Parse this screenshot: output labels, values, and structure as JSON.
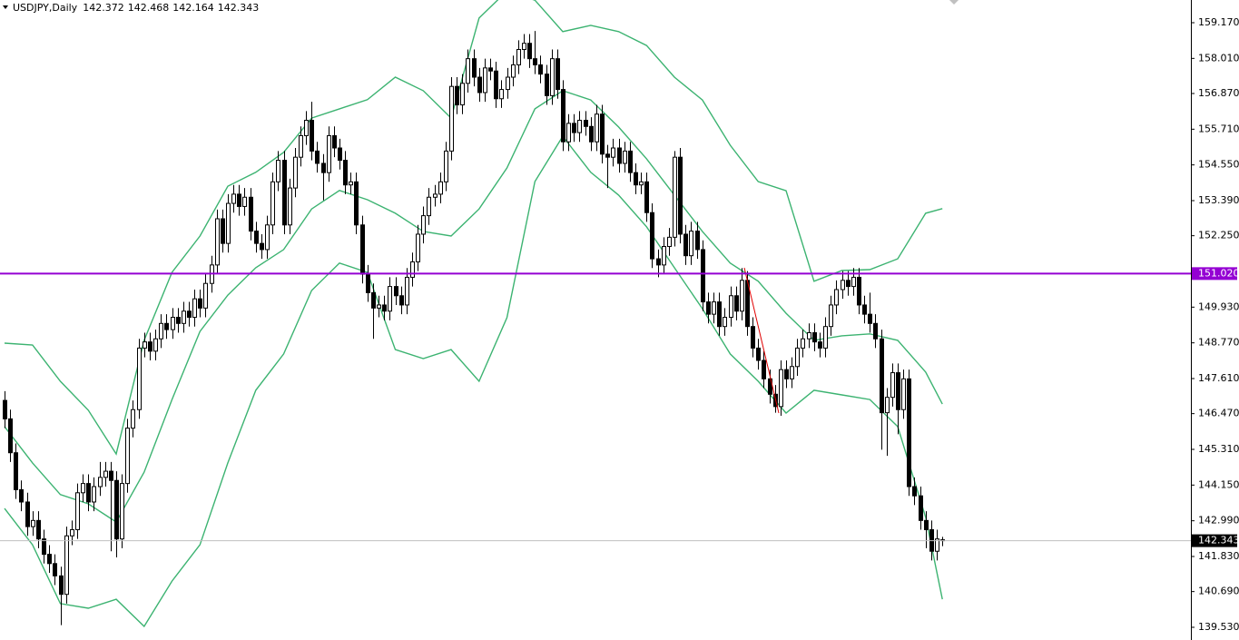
{
  "chart_data": {
    "type": "candlestick",
    "title": "USDJPY,Daily",
    "open": [
      146.9,
      146.3,
      145.2,
      144.0,
      143.6,
      142.8,
      143.0,
      142.4,
      141.9,
      141.6,
      141.2,
      140.6,
      142.5,
      142.7,
      143.9,
      144.2,
      143.6,
      144.1,
      144.4,
      144.6,
      144.3,
      142.4,
      144.2,
      146.0,
      146.6,
      148.6,
      148.8,
      148.5,
      148.9,
      149.4,
      149.2,
      149.6,
      149.4,
      149.8,
      149.6,
      150.2,
      149.9,
      150.7,
      151.3,
      152.8,
      152.0,
      153.3,
      153.6,
      153.2,
      153.5,
      152.4,
      152.0,
      151.8,
      152.6,
      154.0,
      154.7,
      152.6,
      153.8,
      154.8,
      155.5,
      156.0,
      155.0,
      154.6,
      154.3,
      155.5,
      155.1,
      154.7,
      153.9,
      154.0,
      152.6,
      151.0,
      150.4,
      149.9,
      150.0,
      149.8,
      150.6,
      150.3,
      150.0,
      150.9,
      151.4,
      152.3,
      152.9,
      153.5,
      153.6,
      154.0,
      155.0,
      157.1,
      156.5,
      157.2,
      158.0,
      157.4,
      156.9,
      157.7,
      157.6,
      156.7,
      157.0,
      157.4,
      157.8,
      158.3,
      158.5,
      158.0,
      157.8,
      157.5,
      156.8,
      158.0,
      157.0,
      155.3,
      155.9,
      155.6,
      156.0,
      155.8,
      155.3,
      156.2,
      154.9,
      154.8,
      155.1,
      154.6,
      155.0,
      154.3,
      153.9,
      154.0,
      153.0,
      151.5,
      151.3,
      151.9,
      152.2,
      154.8,
      152.3,
      151.6,
      152.4,
      151.8,
      150.1,
      149.7,
      150.1,
      149.3,
      149.6,
      150.3,
      149.8,
      150.8,
      149.3,
      148.6,
      148.2,
      147.6,
      147.1,
      146.7,
      147.9,
      147.6,
      148.0,
      148.6,
      148.9,
      149.1,
      148.8,
      148.6,
      149.3,
      150.0,
      150.5,
      150.8,
      150.6,
      150.9,
      150.0,
      149.7,
      149.4,
      148.9,
      146.5,
      147.0,
      147.8,
      146.6,
      147.6,
      144.1,
      143.8,
      143.0,
      142.7,
      142.0,
      142.372
    ],
    "high": [
      147.2,
      146.6,
      145.5,
      144.3,
      143.9,
      143.3,
      143.3,
      142.7,
      142.2,
      141.9,
      141.5,
      142.8,
      143.0,
      144.2,
      144.5,
      144.5,
      144.4,
      144.9,
      144.9,
      144.9,
      144.6,
      144.5,
      146.3,
      146.9,
      148.9,
      149.1,
      149.1,
      149.2,
      149.7,
      149.7,
      149.9,
      149.9,
      150.1,
      150.1,
      150.5,
      150.5,
      151.0,
      151.6,
      153.1,
      153.1,
      153.6,
      153.9,
      153.9,
      153.8,
      153.8,
      152.7,
      152.3,
      152.9,
      154.3,
      155.0,
      155.0,
      154.1,
      155.1,
      155.8,
      156.3,
      156.6,
      155.3,
      154.9,
      155.8,
      155.8,
      155.4,
      155.0,
      154.3,
      154.3,
      152.9,
      151.3,
      150.7,
      150.3,
      150.3,
      150.9,
      150.9,
      150.6,
      151.2,
      151.7,
      152.6,
      153.2,
      153.8,
      153.9,
      154.3,
      155.3,
      157.4,
      157.4,
      157.5,
      158.3,
      158.3,
      157.7,
      158.0,
      158.0,
      157.9,
      157.3,
      157.7,
      158.1,
      158.6,
      158.8,
      158.8,
      158.9,
      158.1,
      157.8,
      158.3,
      158.3,
      157.3,
      156.2,
      156.2,
      156.3,
      156.3,
      156.1,
      156.5,
      156.5,
      155.2,
      155.4,
      155.4,
      155.3,
      155.3,
      154.6,
      154.3,
      154.3,
      153.3,
      151.8,
      152.2,
      152.5,
      155.0,
      155.1,
      152.6,
      152.7,
      152.7,
      152.1,
      150.4,
      150.4,
      150.4,
      149.9,
      150.6,
      150.6,
      151.2,
      151.1,
      149.6,
      148.9,
      148.5,
      147.9,
      147.4,
      148.2,
      148.2,
      148.3,
      148.9,
      149.2,
      149.4,
      149.4,
      149.1,
      149.6,
      150.3,
      150.8,
      151.1,
      151.1,
      151.2,
      151.2,
      150.3,
      150.4,
      149.7,
      149.2,
      147.3,
      148.1,
      148.1,
      147.9,
      147.9,
      144.4,
      144.1,
      143.3,
      143.0,
      142.7,
      142.468
    ],
    "low": [
      146.0,
      144.9,
      143.7,
      143.3,
      142.5,
      142.5,
      142.1,
      141.6,
      141.3,
      140.9,
      139.6,
      140.3,
      142.2,
      142.4,
      143.6,
      143.3,
      143.3,
      143.8,
      144.1,
      142.0,
      141.8,
      142.1,
      143.9,
      145.7,
      146.3,
      148.3,
      148.2,
      148.2,
      148.6,
      148.9,
      148.9,
      149.1,
      149.1,
      149.3,
      149.3,
      149.6,
      149.6,
      150.4,
      151.0,
      151.7,
      151.7,
      153.0,
      152.9,
      152.9,
      152.1,
      151.7,
      151.5,
      151.5,
      152.3,
      153.7,
      152.3,
      152.3,
      153.5,
      154.5,
      155.2,
      154.7,
      154.3,
      153.4,
      154.0,
      154.8,
      154.4,
      153.6,
      153.6,
      152.3,
      150.7,
      150.1,
      148.9,
      149.6,
      149.5,
      149.5,
      150.0,
      149.7,
      149.7,
      150.6,
      151.1,
      152.0,
      152.6,
      153.2,
      153.3,
      153.7,
      154.7,
      156.2,
      156.2,
      156.9,
      157.1,
      156.6,
      156.6,
      157.3,
      156.4,
      156.4,
      156.7,
      157.1,
      157.5,
      158.0,
      157.7,
      157.5,
      157.2,
      156.5,
      156.5,
      156.7,
      155.0,
      155.0,
      155.3,
      155.3,
      155.5,
      155.0,
      155.0,
      154.6,
      153.8,
      154.5,
      154.3,
      154.3,
      154.0,
      153.6,
      153.6,
      152.7,
      151.2,
      150.9,
      151.0,
      151.6,
      151.9,
      152.0,
      151.3,
      151.3,
      151.5,
      149.8,
      149.4,
      149.4,
      149.0,
      149.0,
      149.3,
      149.5,
      149.5,
      149.0,
      148.3,
      147.9,
      147.3,
      146.8,
      146.5,
      146.4,
      147.3,
      147.3,
      147.7,
      148.3,
      148.6,
      148.5,
      148.3,
      148.3,
      149.0,
      149.7,
      150.2,
      150.3,
      150.3,
      149.7,
      149.4,
      149.1,
      148.6,
      145.3,
      145.1,
      146.7,
      145.8,
      146.3,
      143.8,
      143.5,
      142.7,
      142.1,
      141.7,
      141.7,
      142.164
    ],
    "close": [
      146.3,
      145.2,
      144.0,
      143.6,
      142.8,
      143.0,
      142.4,
      141.9,
      141.6,
      141.2,
      140.6,
      142.5,
      142.7,
      143.9,
      144.2,
      143.6,
      144.1,
      144.4,
      144.6,
      144.3,
      142.4,
      144.2,
      146.0,
      146.6,
      148.6,
      148.8,
      148.5,
      148.9,
      149.4,
      149.2,
      149.6,
      149.4,
      149.8,
      149.6,
      150.2,
      149.9,
      150.7,
      151.3,
      152.8,
      152.0,
      153.3,
      153.6,
      153.2,
      153.5,
      152.4,
      152.0,
      151.8,
      152.6,
      154.0,
      154.7,
      152.6,
      153.8,
      154.8,
      155.5,
      156.0,
      155.0,
      154.6,
      154.3,
      155.5,
      155.1,
      154.7,
      153.9,
      154.0,
      152.6,
      151.0,
      150.4,
      149.9,
      150.0,
      149.8,
      150.6,
      150.3,
      150.0,
      150.9,
      151.4,
      152.3,
      152.9,
      153.5,
      153.6,
      154.0,
      155.0,
      157.1,
      156.5,
      157.2,
      158.0,
      157.4,
      156.9,
      157.7,
      157.6,
      156.7,
      157.0,
      157.4,
      157.8,
      158.3,
      158.5,
      158.0,
      157.8,
      157.5,
      156.8,
      158.0,
      157.0,
      155.3,
      155.9,
      155.6,
      156.0,
      155.8,
      155.3,
      156.2,
      154.9,
      154.8,
      155.1,
      154.6,
      155.0,
      154.3,
      153.9,
      154.0,
      153.0,
      151.5,
      151.3,
      151.9,
      152.2,
      154.8,
      152.3,
      151.6,
      152.4,
      151.8,
      150.1,
      149.7,
      150.1,
      149.3,
      149.6,
      150.3,
      149.8,
      150.8,
      149.3,
      148.6,
      148.2,
      147.6,
      147.1,
      146.7,
      147.9,
      147.6,
      148.0,
      148.6,
      148.9,
      149.1,
      148.8,
      148.6,
      149.3,
      150.0,
      150.5,
      150.8,
      150.6,
      150.9,
      150.0,
      149.7,
      149.4,
      148.9,
      146.5,
      147.0,
      147.8,
      146.6,
      147.6,
      144.1,
      143.8,
      143.0,
      142.7,
      142.0,
      142.4,
      142.343
    ],
    "bands": [
      {
        "color": "#3cb371",
        "x": [
          0,
          5,
          10,
          15,
          20,
          25,
          30,
          35,
          40,
          45,
          50,
          55,
          60,
          65,
          70,
          75,
          80,
          85,
          90,
          95,
          100,
          105,
          110,
          115,
          120,
          125,
          130,
          135,
          140,
          145,
          150,
          155,
          160,
          165,
          168
        ],
        "values": [
          148.76,
          148.7,
          147.52,
          146.58,
          145.16,
          148.85,
          151.06,
          152.24,
          153.86,
          154.31,
          154.96,
          156.07,
          156.37,
          156.67,
          157.4,
          156.96,
          156.07,
          159.32,
          160.2,
          159.9,
          158.88,
          159.08,
          158.88,
          158.43,
          157.4,
          156.66,
          155.19,
          154.01,
          153.71,
          150.77,
          151.12,
          151.15,
          151.5,
          152.98,
          153.13
        ]
      },
      {
        "color": "#3cb371",
        "x": [
          0,
          5,
          10,
          15,
          20,
          25,
          30,
          35,
          40,
          45,
          50,
          55,
          60,
          65,
          70,
          75,
          80,
          85,
          90,
          95,
          100,
          105,
          110,
          115,
          120,
          125,
          130,
          135,
          140,
          145,
          150,
          155,
          160,
          165,
          168
        ],
        "values": [
          146.05,
          144.87,
          143.84,
          143.54,
          142.95,
          144.57,
          146.93,
          149.14,
          150.32,
          151.21,
          151.8,
          153.12,
          153.72,
          153.42,
          152.98,
          152.39,
          152.24,
          153.12,
          154.45,
          156.37,
          156.96,
          156.66,
          155.78,
          154.75,
          153.57,
          152.39,
          151.36,
          150.77,
          149.73,
          148.85,
          149.0,
          149.06,
          148.85,
          147.82,
          146.78
        ]
      },
      {
        "color": "#3cb371",
        "x": [
          0,
          5,
          10,
          15,
          20,
          25,
          30,
          35,
          40,
          45,
          50,
          55,
          60,
          65,
          70,
          75,
          80,
          85,
          90,
          95,
          100,
          105,
          110,
          115,
          120,
          125,
          130,
          135,
          140,
          145,
          150,
          155,
          160,
          165,
          168
        ],
        "values": [
          143.39,
          142.21,
          140.3,
          140.15,
          140.44,
          139.56,
          141.03,
          142.21,
          144.87,
          147.23,
          148.41,
          150.47,
          151.36,
          151.06,
          148.55,
          148.26,
          148.55,
          147.52,
          149.59,
          154.01,
          155.48,
          154.31,
          153.57,
          152.54,
          151.21,
          149.88,
          148.41,
          147.52,
          146.49,
          147.23,
          147.08,
          146.93,
          146.05,
          143.1,
          140.44
        ]
      }
    ],
    "hline": {
      "value": 151.02,
      "label": "151.020",
      "color": "#9400d3"
    },
    "ylim": [
      139.117,
      159.907
    ],
    "yticks": [
      {
        "value": 159.17,
        "label": "159.170"
      },
      {
        "value": 158.01,
        "label": "158.010"
      },
      {
        "value": 156.87,
        "label": "156.870"
      },
      {
        "value": 155.71,
        "label": "155.710"
      },
      {
        "value": 154.55,
        "label": "154.550"
      },
      {
        "value": 153.39,
        "label": "153.390"
      },
      {
        "value": 152.25,
        "label": "152.250"
      },
      {
        "value": 149.93,
        "label": "149.930"
      },
      {
        "value": 148.77,
        "label": "148.770"
      },
      {
        "value": 147.61,
        "label": "147.610"
      },
      {
        "value": 146.47,
        "label": "146.470"
      },
      {
        "value": 145.31,
        "label": "145.310"
      },
      {
        "value": 144.15,
        "label": "144.150"
      },
      {
        "value": 142.99,
        "label": "142.990"
      },
      {
        "value": 141.83,
        "label": "141.830"
      },
      {
        "value": 140.69,
        "label": "140.690"
      },
      {
        "value": 139.53,
        "label": "139.530"
      }
    ]
  }
}
